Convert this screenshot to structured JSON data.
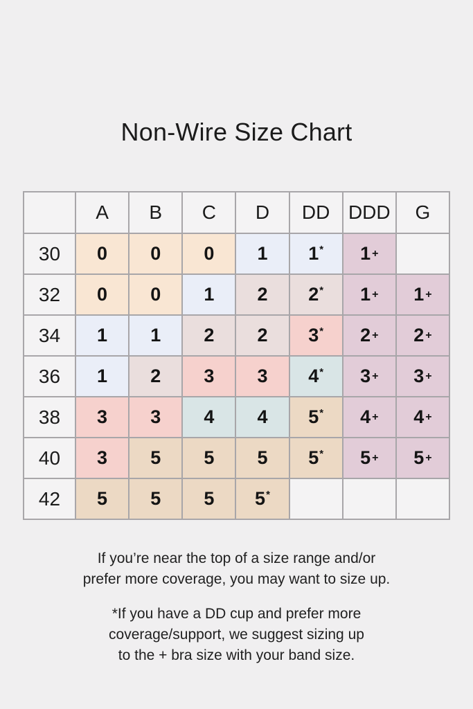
{
  "page": {
    "title": "Non-Wire Size Chart",
    "background_color": "#f0eff0"
  },
  "colors": {
    "none": "#f4f3f4",
    "peach": "#f9e6d3",
    "blue": "#eaeef8",
    "beige": "#eadedd",
    "pink": "#f6d1cd",
    "teal": "#d9e5e6",
    "tan": "#ecd9c4",
    "mauve": "#e2ccd8",
    "header_bg": "#f4f3f4",
    "border": "#a8a6a9"
  },
  "chart_data": {
    "type": "table",
    "title": "Non-Wire Size Chart",
    "columns": [
      "",
      "A",
      "B",
      "C",
      "D",
      "DD",
      "DDD",
      "G"
    ],
    "rows": [
      {
        "band": "30",
        "cells": [
          {
            "v": "0",
            "s": "",
            "c": "peach"
          },
          {
            "v": "0",
            "s": "",
            "c": "peach"
          },
          {
            "v": "0",
            "s": "",
            "c": "peach"
          },
          {
            "v": "1",
            "s": "",
            "c": "blue"
          },
          {
            "v": "1",
            "s": "*",
            "c": "blue"
          },
          {
            "v": "1",
            "s": "+",
            "c": "mauve"
          },
          {
            "v": "",
            "s": "",
            "c": "none"
          }
        ]
      },
      {
        "band": "32",
        "cells": [
          {
            "v": "0",
            "s": "",
            "c": "peach"
          },
          {
            "v": "0",
            "s": "",
            "c": "peach"
          },
          {
            "v": "1",
            "s": "",
            "c": "blue"
          },
          {
            "v": "2",
            "s": "",
            "c": "beige"
          },
          {
            "v": "2",
            "s": "*",
            "c": "beige"
          },
          {
            "v": "1",
            "s": "+",
            "c": "mauve"
          },
          {
            "v": "1",
            "s": "+",
            "c": "mauve"
          }
        ]
      },
      {
        "band": "34",
        "cells": [
          {
            "v": "1",
            "s": "",
            "c": "blue"
          },
          {
            "v": "1",
            "s": "",
            "c": "blue"
          },
          {
            "v": "2",
            "s": "",
            "c": "beige"
          },
          {
            "v": "2",
            "s": "",
            "c": "beige"
          },
          {
            "v": "3",
            "s": "*",
            "c": "pink"
          },
          {
            "v": "2",
            "s": "+",
            "c": "mauve"
          },
          {
            "v": "2",
            "s": "+",
            "c": "mauve"
          }
        ]
      },
      {
        "band": "36",
        "cells": [
          {
            "v": "1",
            "s": "",
            "c": "blue"
          },
          {
            "v": "2",
            "s": "",
            "c": "beige"
          },
          {
            "v": "3",
            "s": "",
            "c": "pink"
          },
          {
            "v": "3",
            "s": "",
            "c": "pink"
          },
          {
            "v": "4",
            "s": "*",
            "c": "teal"
          },
          {
            "v": "3",
            "s": "+",
            "c": "mauve"
          },
          {
            "v": "3",
            "s": "+",
            "c": "mauve"
          }
        ]
      },
      {
        "band": "38",
        "cells": [
          {
            "v": "3",
            "s": "",
            "c": "pink"
          },
          {
            "v": "3",
            "s": "",
            "c": "pink"
          },
          {
            "v": "4",
            "s": "",
            "c": "teal"
          },
          {
            "v": "4",
            "s": "",
            "c": "teal"
          },
          {
            "v": "5",
            "s": "*",
            "c": "tan"
          },
          {
            "v": "4",
            "s": "+",
            "c": "mauve"
          },
          {
            "v": "4",
            "s": "+",
            "c": "mauve"
          }
        ]
      },
      {
        "band": "40",
        "cells": [
          {
            "v": "3",
            "s": "",
            "c": "pink"
          },
          {
            "v": "5",
            "s": "",
            "c": "tan"
          },
          {
            "v": "5",
            "s": "",
            "c": "tan"
          },
          {
            "v": "5",
            "s": "",
            "c": "tan"
          },
          {
            "v": "5",
            "s": "*",
            "c": "tan"
          },
          {
            "v": "5",
            "s": "+",
            "c": "mauve"
          },
          {
            "v": "5",
            "s": "+",
            "c": "mauve"
          }
        ]
      },
      {
        "band": "42",
        "cells": [
          {
            "v": "5",
            "s": "",
            "c": "tan"
          },
          {
            "v": "5",
            "s": "",
            "c": "tan"
          },
          {
            "v": "5",
            "s": "",
            "c": "tan"
          },
          {
            "v": "5",
            "s": "*",
            "c": "tan"
          },
          {
            "v": "",
            "s": "",
            "c": "none"
          },
          {
            "v": "",
            "s": "",
            "c": "none"
          },
          {
            "v": "",
            "s": "",
            "c": "none"
          }
        ]
      }
    ]
  },
  "footer": {
    "note1_lines": [
      "If you’re near the top of a size range and/or",
      "prefer more coverage, you may want to size up."
    ],
    "note2_lines": [
      "*If you have a DD cup and prefer more",
      "coverage/support, we suggest sizing up",
      "to the + bra size with your band size."
    ]
  }
}
